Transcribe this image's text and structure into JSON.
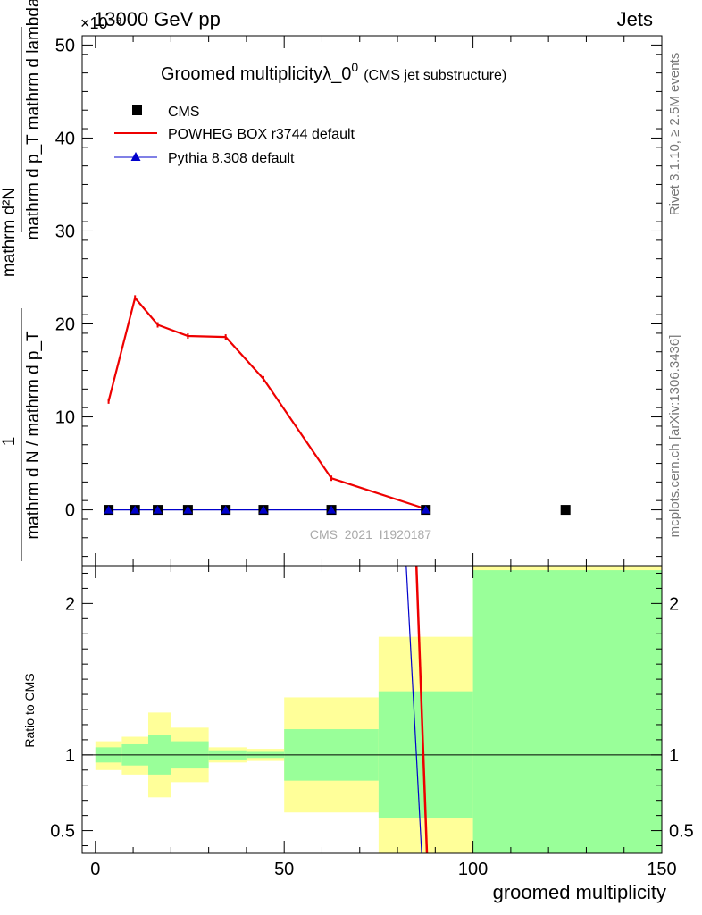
{
  "header": {
    "left": "13000 GeV pp",
    "right": "Jets",
    "exponent": "×10⁻³"
  },
  "side_labels": {
    "rivet": "Rivet 3.1.10, ≥ 2.5M events",
    "mcplots": "mcplots.cern.ch [arXiv:1306.3436]"
  },
  "watermark": "CMS_2021_I1920187",
  "title": {
    "main": "Groomed multiplicityλ_0",
    "sup": "0",
    "sub": "(CMS jet substructure)"
  },
  "legend": [
    {
      "label": "CMS",
      "color": "#000000",
      "style": "square"
    },
    {
      "label": "POWHEG BOX r3744 default",
      "color": "#ee0000",
      "style": "line"
    },
    {
      "label": "Pythia 8.308 default",
      "color": "#0000cc",
      "style": "triangle-line"
    }
  ],
  "y_label_main": {
    "top_num": "mathrm d²N",
    "top_den": "mathrm d p_T mathrm d lambda",
    "one": "1",
    "bottom": "mathrm d N / mathrm d p_T"
  },
  "y_label_ratio": "Ratio to CMS",
  "x_label": "groomed multiplicity",
  "colors": {
    "data": "#000000",
    "powheg": "#ee0000",
    "pythia": "#0000cc",
    "band_inner": "#99ff99",
    "band_outer": "#ffff99",
    "axis": "#000000"
  },
  "chart_data": [
    {
      "type": "line",
      "panel": "main",
      "xlim": [
        -3.5,
        150
      ],
      "ylim": [
        -6,
        51
      ],
      "y_scale_note": "×10⁻³",
      "y_ticks": [
        0,
        10,
        20,
        30,
        40,
        50
      ],
      "y_tick_labels": [
        "0",
        "10",
        "20",
        "30",
        "40",
        "50"
      ],
      "series": [
        {
          "name": "CMS",
          "x": [
            3.5,
            10.5,
            16.5,
            24.5,
            34.5,
            44.5,
            62.5,
            87.5,
            124.5
          ],
          "y": [
            0,
            0,
            0,
            0,
            0,
            0,
            0,
            0,
            0
          ]
        },
        {
          "name": "POWHEG BOX r3744 default",
          "x": [
            3.5,
            10.5,
            16.5,
            24.5,
            34.5,
            44.5,
            62.5,
            87.5
          ],
          "y": [
            11.7,
            22.8,
            19.9,
            18.7,
            18.6,
            14.1,
            3.4,
            0.1
          ]
        },
        {
          "name": "Pythia 8.308 default",
          "x": [
            3.5,
            10.5,
            16.5,
            24.5,
            34.5,
            44.5,
            62.5,
            87.5
          ],
          "y": [
            0,
            0,
            0,
            0,
            0,
            0,
            0,
            0
          ]
        }
      ]
    },
    {
      "type": "area",
      "panel": "ratio",
      "xlim": [
        -3.5,
        150
      ],
      "ylim": [
        0.35,
        2.25
      ],
      "y_ticks": [
        0.5,
        1,
        2
      ],
      "y_tick_labels": [
        "0.5",
        "1",
        "2"
      ],
      "x_ticks": [
        0,
        50,
        100,
        150
      ],
      "x_tick_labels": [
        "0",
        "50",
        "100",
        "150"
      ],
      "bins": [
        {
          "x0": 0,
          "x1": 7,
          "inner": [
            0.95,
            1.05
          ],
          "outer": [
            0.9,
            1.09
          ]
        },
        {
          "x0": 7,
          "x1": 14,
          "inner": [
            0.93,
            1.07
          ],
          "outer": [
            0.87,
            1.12
          ]
        },
        {
          "x0": 14,
          "x1": 20,
          "inner": [
            0.87,
            1.13
          ],
          "outer": [
            0.72,
            1.28
          ]
        },
        {
          "x0": 20,
          "x1": 30,
          "inner": [
            0.91,
            1.09
          ],
          "outer": [
            0.82,
            1.18
          ]
        },
        {
          "x0": 30,
          "x1": 40,
          "inner": [
            0.97,
            1.03
          ],
          "outer": [
            0.95,
            1.05
          ]
        },
        {
          "x0": 40,
          "x1": 50,
          "inner": [
            0.98,
            1.02
          ],
          "outer": [
            0.96,
            1.04
          ]
        },
        {
          "x0": 50,
          "x1": 75,
          "inner": [
            0.83,
            1.17
          ],
          "outer": [
            0.62,
            1.38
          ]
        },
        {
          "x0": 75,
          "x1": 100,
          "inner": [
            0.58,
            1.42
          ],
          "outer": [
            0.35,
            1.78
          ]
        },
        {
          "x0": 100,
          "x1": 150,
          "inner": [
            0.35,
            2.22
          ],
          "outer": [
            0.35,
            2.25
          ]
        }
      ],
      "series": [
        {
          "name": "POWHEG BOX r3744 default",
          "x": [
            85.0,
            87.8
          ],
          "y": [
            2.25,
            0.35
          ]
        },
        {
          "name": "Pythia 8.308 default",
          "x": [
            82.3,
            86.4
          ],
          "y": [
            2.25,
            0.35
          ]
        }
      ]
    }
  ]
}
